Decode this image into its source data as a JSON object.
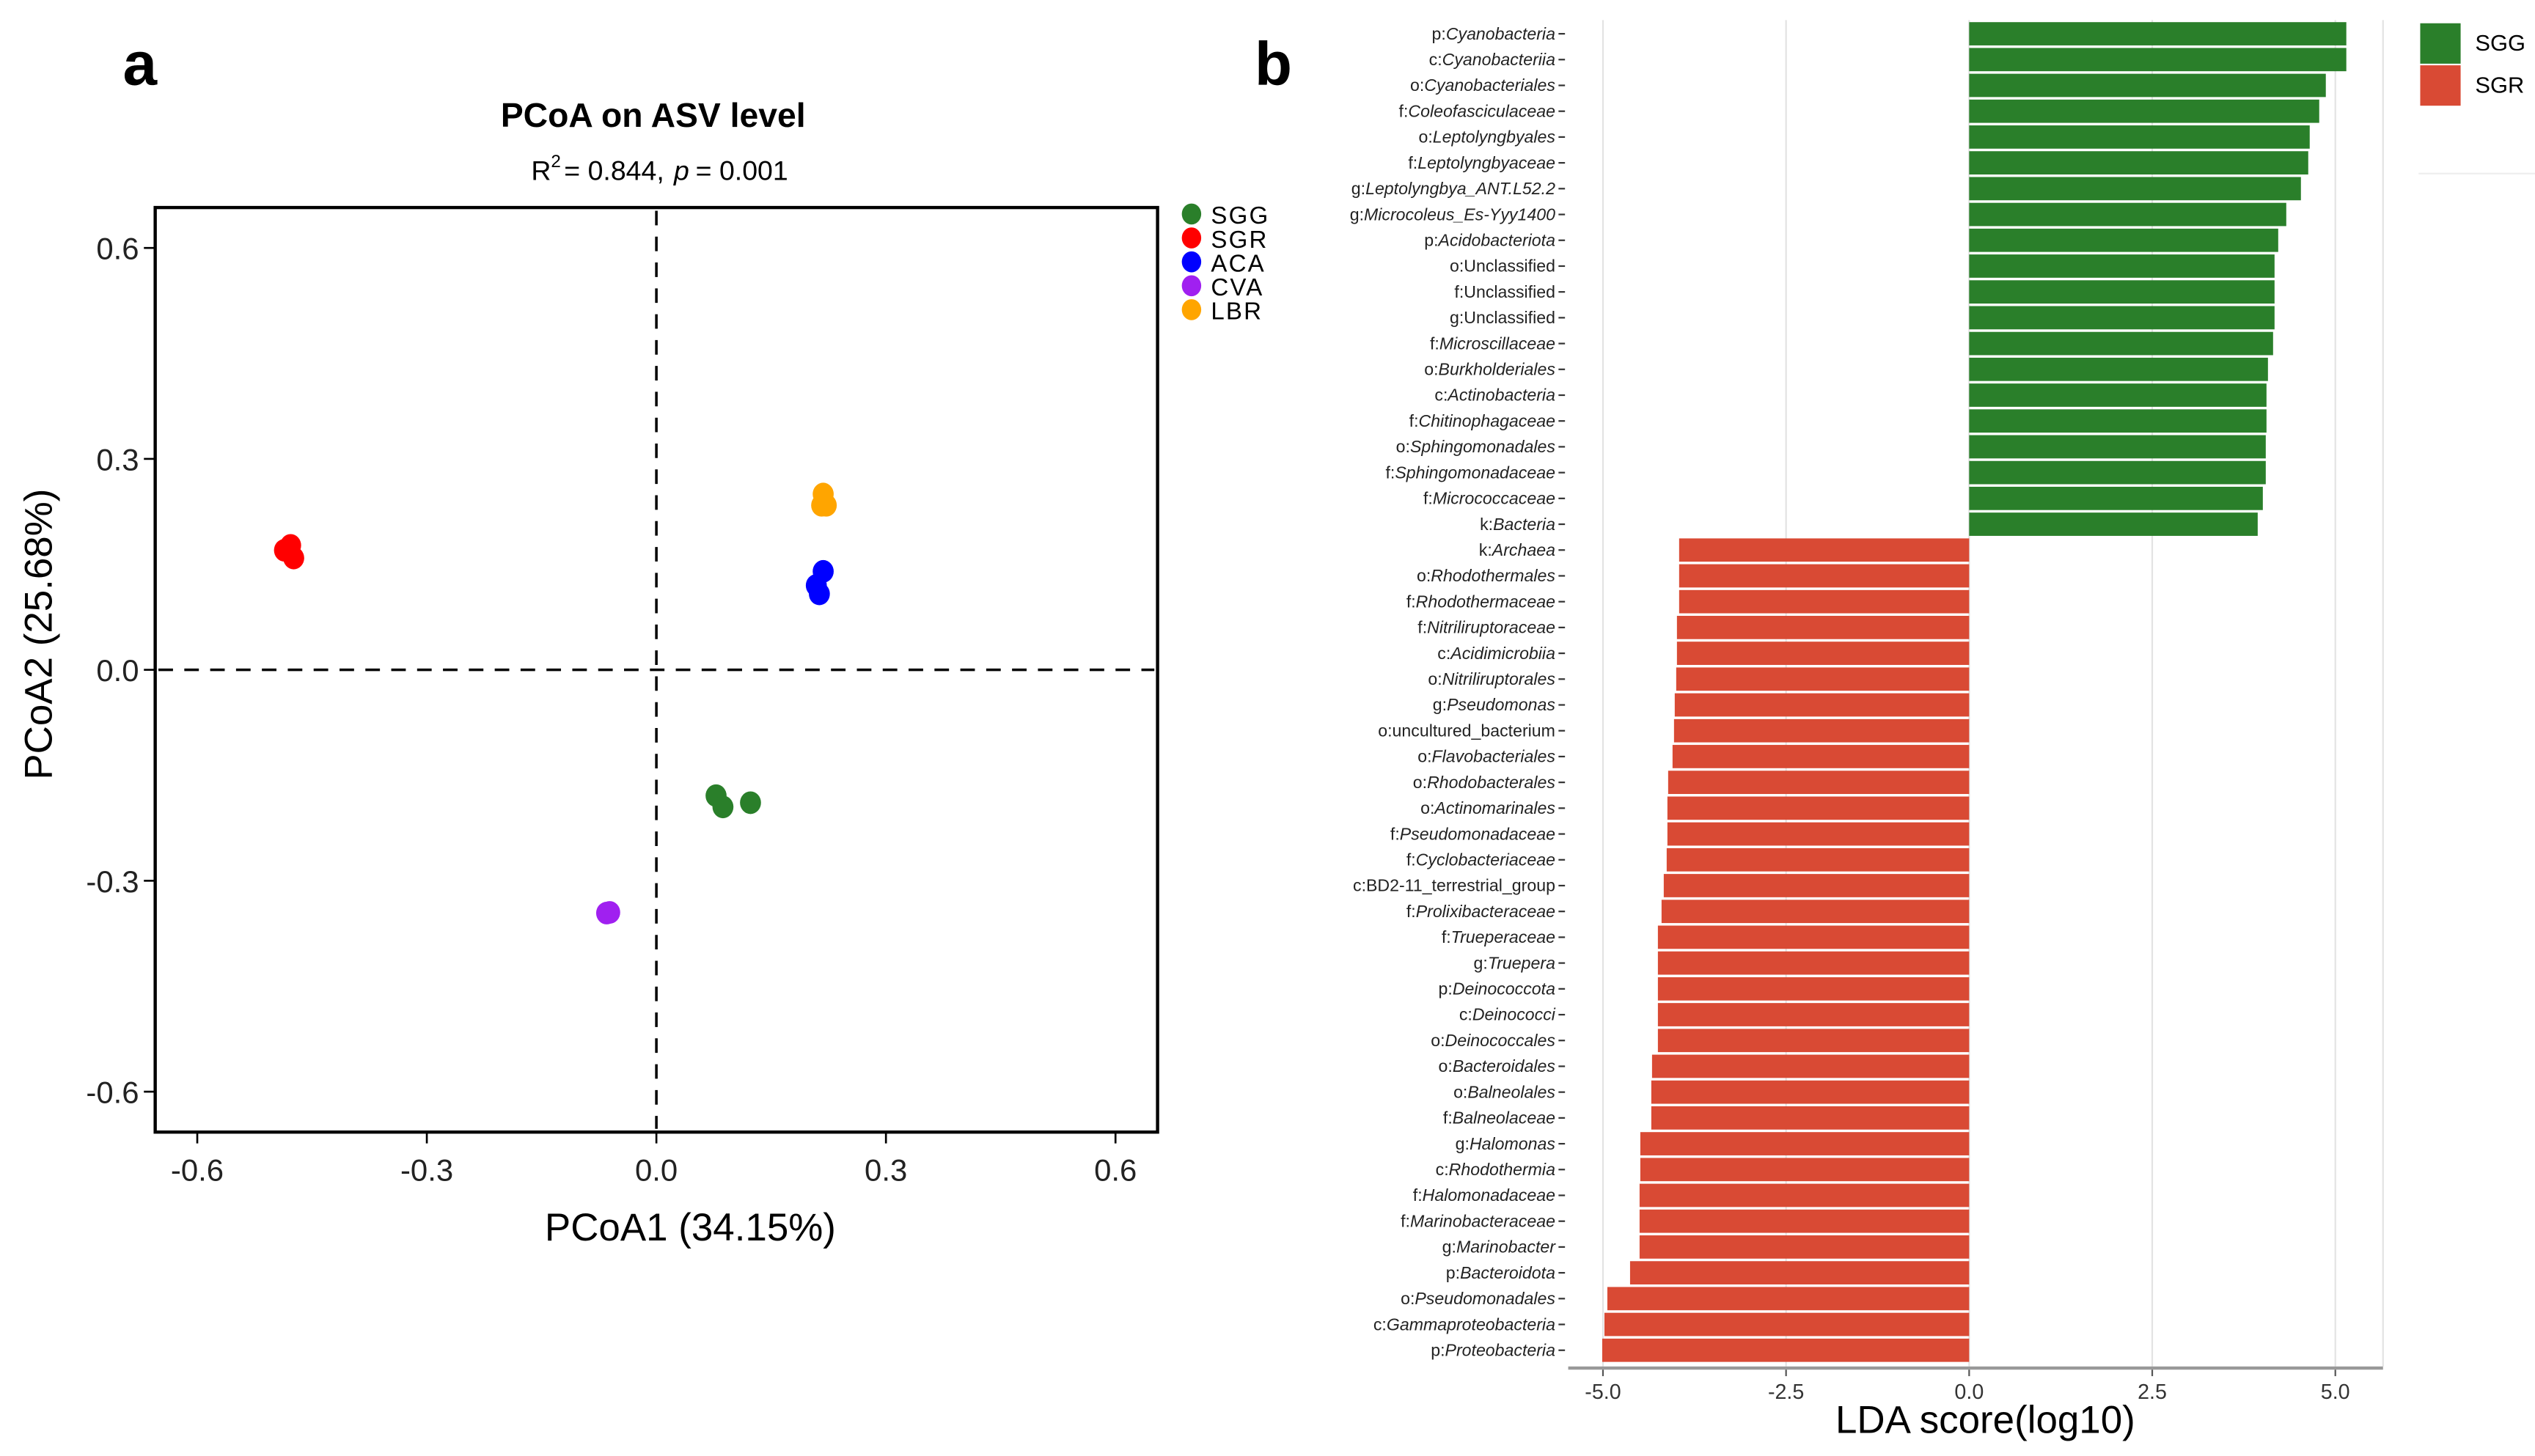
{
  "panel_labels": {
    "a": "a",
    "b": "b"
  },
  "chart_data": [
    {
      "type": "scatter",
      "title": "PCoA on ASV level",
      "subtitle": {
        "r": "R",
        "sup": "2",
        "r_value": "= 0.844,",
        "p": "p",
        "p_value": "= 0.001"
      },
      "xlabel": "PCoA1 (34.15%)",
      "ylabel": "PCoA2 (25.68%)",
      "xlim": [
        -0.66,
        0.66
      ],
      "ylim": [
        -0.66,
        0.66
      ],
      "xticks": [
        "-0.6",
        "-0.3",
        "0.0",
        "0.3",
        "0.6"
      ],
      "yticks": [
        "0.6",
        "0.3",
        "0.0",
        "-0.3",
        "-0.6"
      ],
      "xtick_values": [
        -0.6,
        -0.3,
        0,
        0.3,
        0.6
      ],
      "ytick_values": [
        0.6,
        0.3,
        0,
        -0.3,
        -0.6
      ],
      "reference_lines": {
        "x": 0,
        "y": 0,
        "style": "dashed"
      },
      "legend_position": "right-top",
      "series": [
        {
          "name": "SGG",
          "color": "#2a7f2a",
          "points": [
            [
              0.078,
              -0.179
            ],
            [
              0.087,
              -0.195
            ],
            [
              0.123,
              -0.189
            ]
          ]
        },
        {
          "name": "SGR",
          "color": "#ff0000",
          "points": [
            [
              -0.478,
              0.177
            ],
            [
              -0.486,
              0.17
            ],
            [
              -0.474,
              0.159
            ]
          ]
        },
        {
          "name": "ACA",
          "color": "#0000ff",
          "points": [
            [
              0.218,
              0.14
            ],
            [
              0.209,
              0.12
            ],
            [
              0.213,
              0.108
            ]
          ]
        },
        {
          "name": "CVA",
          "color": "#a020f0",
          "points": [
            [
              -0.061,
              -0.345
            ],
            [
              -0.065,
              -0.346
            ]
          ]
        },
        {
          "name": "LBR",
          "color": "#ffa500",
          "points": [
            [
              0.218,
              0.25
            ],
            [
              0.222,
              0.234
            ],
            [
              0.216,
              0.234
            ]
          ]
        }
      ]
    },
    {
      "type": "bar",
      "orientation": "horizontal",
      "xlabel": "LDA score(log10)",
      "xlim": [
        -5.5,
        5.7
      ],
      "xticks": [
        "-5.0",
        "-2.5",
        "0.0",
        "2.5",
        "5.0"
      ],
      "xtick_values": [
        -5,
        -2.5,
        0,
        2.5,
        5
      ],
      "grid": true,
      "legend_position": "top-right",
      "legend": [
        {
          "name": "SGG",
          "color": "#2a7f2a"
        },
        {
          "name": "SGR",
          "color": "#d94a34"
        }
      ],
      "bars": [
        {
          "label": "p:Cyanobacteria",
          "value": 5.15,
          "group": "SGG"
        },
        {
          "label": "c:Cyanobacteriia",
          "value": 5.15,
          "group": "SGG"
        },
        {
          "label": "o:Cyanobacteriales",
          "value": 4.87,
          "group": "SGG"
        },
        {
          "label": "f:Coleofasciculaceae",
          "value": 4.78,
          "group": "SGG"
        },
        {
          "label": "o:Leptolyngbyales",
          "value": 4.65,
          "group": "SGG"
        },
        {
          "label": "f:Leptolyngbyaceae",
          "value": 4.63,
          "group": "SGG"
        },
        {
          "label": "g:Leptolyngbya_ANT.L52.2",
          "value": 4.53,
          "group": "SGG"
        },
        {
          "label": "g:Microcoleus_Es-Yyy1400",
          "value": 4.33,
          "group": "SGG"
        },
        {
          "label": "p:Acidobacteriota",
          "value": 4.22,
          "group": "SGG"
        },
        {
          "label": "o:Unclassified",
          "value": 4.17,
          "group": "SGG"
        },
        {
          "label": "f:Unclassified",
          "value": 4.17,
          "group": "SGG"
        },
        {
          "label": "g:Unclassified",
          "value": 4.17,
          "group": "SGG"
        },
        {
          "label": "f:Microscillaceae",
          "value": 4.15,
          "group": "SGG"
        },
        {
          "label": "o:Burkholderiales",
          "value": 4.08,
          "group": "SGG"
        },
        {
          "label": "c:Actinobacteria",
          "value": 4.06,
          "group": "SGG"
        },
        {
          "label": "f:Chitinophagaceae",
          "value": 4.06,
          "group": "SGG"
        },
        {
          "label": "o:Sphingomonadales",
          "value": 4.05,
          "group": "SGG"
        },
        {
          "label": "f:Sphingomonadaceae",
          "value": 4.05,
          "group": "SGG"
        },
        {
          "label": "f:Micrococcaceae",
          "value": 4.01,
          "group": "SGG"
        },
        {
          "label": "k:Bacteria",
          "value": 3.94,
          "group": "SGG"
        },
        {
          "label": "k:Archaea",
          "value": -3.96,
          "group": "SGR"
        },
        {
          "label": "o:Rhodothermales",
          "value": -3.96,
          "group": "SGR"
        },
        {
          "label": "f:Rhodothermaceae",
          "value": -3.96,
          "group": "SGR"
        },
        {
          "label": "f:Nitriliruptoraceae",
          "value": -3.99,
          "group": "SGR"
        },
        {
          "label": "c:Acidimicrobiia",
          "value": -3.99,
          "group": "SGR"
        },
        {
          "label": "o:Nitriliruptorales",
          "value": -4.0,
          "group": "SGR"
        },
        {
          "label": "g:Pseudomonas",
          "value": -4.02,
          "group": "SGR"
        },
        {
          "label": "o:uncultured_bacterium",
          "value": -4.03,
          "group": "SGR"
        },
        {
          "label": "o:Flavobacteriales",
          "value": -4.05,
          "group": "SGR"
        },
        {
          "label": "o:Rhodobacterales",
          "value": -4.11,
          "group": "SGR"
        },
        {
          "label": "o:Actinomarinales",
          "value": -4.12,
          "group": "SGR"
        },
        {
          "label": "f:Pseudomonadaceae",
          "value": -4.12,
          "group": "SGR"
        },
        {
          "label": "f:Cyclobacteriaceae",
          "value": -4.13,
          "group": "SGR"
        },
        {
          "label": "c:BD2-11_terrestrial_group",
          "value": -4.17,
          "group": "SGR"
        },
        {
          "label": "f:Prolixibacteraceae",
          "value": -4.2,
          "group": "SGR"
        },
        {
          "label": "f:Trueperaceae",
          "value": -4.25,
          "group": "SGR"
        },
        {
          "label": "g:Truepera",
          "value": -4.25,
          "group": "SGR"
        },
        {
          "label": "p:Deinococcota",
          "value": -4.25,
          "group": "SGR"
        },
        {
          "label": "c:Deinococci",
          "value": -4.25,
          "group": "SGR"
        },
        {
          "label": "o:Deinococcales",
          "value": -4.25,
          "group": "SGR"
        },
        {
          "label": "o:Bacteroidales",
          "value": -4.33,
          "group": "SGR"
        },
        {
          "label": "o:Balneolales",
          "value": -4.34,
          "group": "SGR"
        },
        {
          "label": "f:Balneolaceae",
          "value": -4.34,
          "group": "SGR"
        },
        {
          "label": "g:Halomonas",
          "value": -4.49,
          "group": "SGR"
        },
        {
          "label": "c:Rhodothermia",
          "value": -4.49,
          "group": "SGR"
        },
        {
          "label": "f:Halomonadaceae",
          "value": -4.5,
          "group": "SGR"
        },
        {
          "label": "f:Marinobacteraceae",
          "value": -4.5,
          "group": "SGR"
        },
        {
          "label": "g:Marinobacter",
          "value": -4.5,
          "group": "SGR"
        },
        {
          "label": "p:Bacteroidota",
          "value": -4.63,
          "group": "SGR"
        },
        {
          "label": "o:Pseudomonadales",
          "value": -4.94,
          "group": "SGR"
        },
        {
          "label": "c:Gammaproteobacteria",
          "value": -4.98,
          "group": "SGR"
        },
        {
          "label": "p:Proteobacteria",
          "value": -5.01,
          "group": "SGR"
        }
      ]
    }
  ]
}
